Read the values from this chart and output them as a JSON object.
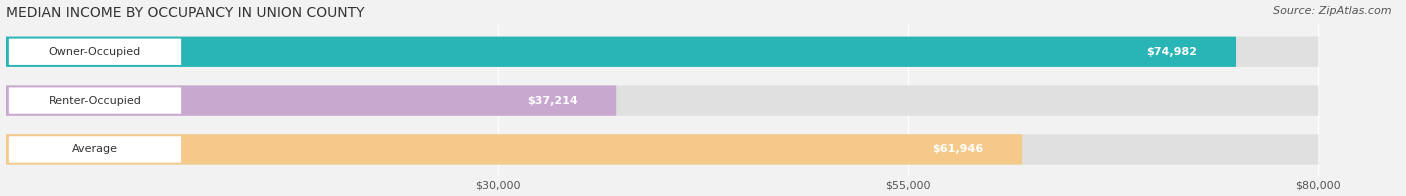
{
  "title": "MEDIAN INCOME BY OCCUPANCY IN UNION COUNTY",
  "source": "Source: ZipAtlas.com",
  "categories": [
    "Owner-Occupied",
    "Renter-Occupied",
    "Average"
  ],
  "values": [
    74982,
    37214,
    61946
  ],
  "bar_colors": [
    "#29b5b5",
    "#c8a8cf",
    "#f5c98a"
  ],
  "value_labels": [
    "$74,982",
    "$37,214",
    "$61,946"
  ],
  "x_ticks": [
    30000,
    55000,
    80000
  ],
  "x_tick_labels": [
    "$30,000",
    "$55,000",
    "$80,000"
  ],
  "xmax": 80000,
  "xlim_max": 85000,
  "background_color": "#f2f2f2",
  "bar_bg_color": "#e0e0e0",
  "label_box_color": "#ffffff",
  "title_fontsize": 10,
  "label_fontsize": 8,
  "value_fontsize": 8,
  "source_fontsize": 8
}
